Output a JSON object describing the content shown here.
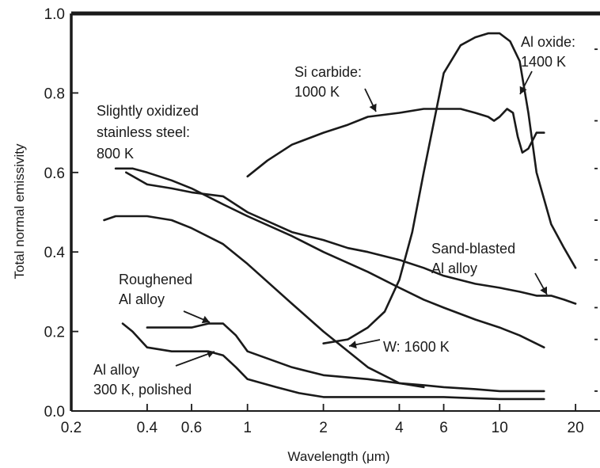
{
  "chart_data": {
    "type": "line",
    "title": "",
    "xlabel": "Wavelength (μm)",
    "ylabel": "Total normal emissivity",
    "xscale": "log",
    "xlim": [
      0.2,
      25
    ],
    "ylim": [
      0.0,
      1.0
    ],
    "grid": false,
    "legend": "none",
    "xticks": [
      {
        "value": 0.2,
        "label": "0.2"
      },
      {
        "value": 0.4,
        "label": "0.4"
      },
      {
        "value": 0.6,
        "label": "0.6"
      },
      {
        "value": 1,
        "label": "1"
      },
      {
        "value": 2,
        "label": "2"
      },
      {
        "value": 4,
        "label": "4"
      },
      {
        "value": 6,
        "label": "6"
      },
      {
        "value": 10,
        "label": "10"
      },
      {
        "value": 20,
        "label": "20"
      }
    ],
    "yticks": [
      {
        "value": 0.0,
        "label": "0.0"
      },
      {
        "value": 0.2,
        "label": "0.2"
      },
      {
        "value": 0.4,
        "label": "0.4"
      },
      {
        "value": 0.6,
        "label": "0.6"
      },
      {
        "value": 0.8,
        "label": "0.8"
      },
      {
        "value": 1.0,
        "label": "1.0"
      }
    ],
    "series": [
      {
        "key": "si-carbide",
        "x": [
          1.0,
          1.2,
          1.5,
          2.0,
          2.5,
          3.0,
          4.0,
          5.0,
          6.0,
          7.0,
          8.0,
          9.0,
          9.5,
          10.0,
          10.7,
          11.3,
          11.8,
          12.3,
          13.0,
          14.0,
          15.0
        ],
        "y": [
          0.59,
          0.63,
          0.67,
          0.7,
          0.72,
          0.74,
          0.75,
          0.76,
          0.76,
          0.76,
          0.75,
          0.74,
          0.73,
          0.74,
          0.76,
          0.75,
          0.69,
          0.65,
          0.66,
          0.7,
          0.7
        ]
      },
      {
        "key": "al-oxide",
        "x": [
          2.0,
          2.5,
          3.0,
          3.5,
          4.0,
          4.5,
          5.0,
          6.0,
          7.0,
          8.0,
          9.0,
          10.0,
          11.0,
          12.0,
          13.0,
          14.0,
          16.0,
          18.0,
          20.0
        ],
        "y": [
          0.17,
          0.18,
          0.21,
          0.25,
          0.33,
          0.45,
          0.6,
          0.85,
          0.92,
          0.94,
          0.95,
          0.95,
          0.93,
          0.88,
          0.75,
          0.6,
          0.47,
          0.41,
          0.36
        ]
      },
      {
        "key": "stainless-steel",
        "x": [
          0.3,
          0.35,
          0.4,
          0.5,
          0.6,
          0.8,
          1.0,
          1.5,
          2.0,
          3.0,
          4.0,
          5.0,
          6.0,
          8.0,
          10.0,
          12.0,
          15.0
        ],
        "y": [
          0.61,
          0.61,
          0.6,
          0.58,
          0.56,
          0.52,
          0.49,
          0.44,
          0.4,
          0.35,
          0.31,
          0.28,
          0.26,
          0.23,
          0.21,
          0.19,
          0.16
        ]
      },
      {
        "key": "sand-blasted-al",
        "x": [
          0.33,
          0.4,
          0.5,
          0.6,
          0.8,
          1.0,
          1.5,
          2.0,
          2.5,
          3.0,
          4.0,
          5.0,
          6.0,
          8.0,
          10.0,
          12.0,
          14.0,
          16.0,
          18.0,
          20.0
        ],
        "y": [
          0.6,
          0.57,
          0.56,
          0.55,
          0.54,
          0.5,
          0.45,
          0.43,
          0.41,
          0.4,
          0.38,
          0.36,
          0.34,
          0.32,
          0.31,
          0.3,
          0.29,
          0.29,
          0.28,
          0.27
        ]
      },
      {
        "key": "w-1600k",
        "x": [
          0.27,
          0.3,
          0.35,
          0.4,
          0.5,
          0.6,
          0.8,
          1.0,
          1.5,
          2.0,
          3.0,
          4.0,
          5.0
        ],
        "y": [
          0.48,
          0.49,
          0.49,
          0.49,
          0.48,
          0.46,
          0.42,
          0.37,
          0.27,
          0.2,
          0.11,
          0.07,
          0.06
        ]
      },
      {
        "key": "roughened-al",
        "x": [
          0.4,
          0.5,
          0.6,
          0.7,
          0.8,
          0.9,
          1.0,
          1.5,
          2.0,
          3.0,
          4.0,
          5.0,
          6.0,
          8.0,
          10.0,
          15.0
        ],
        "y": [
          0.21,
          0.21,
          0.21,
          0.22,
          0.22,
          0.19,
          0.15,
          0.11,
          0.09,
          0.08,
          0.07,
          0.065,
          0.06,
          0.055,
          0.05,
          0.05
        ]
      },
      {
        "key": "al-alloy-polished",
        "x": [
          0.32,
          0.35,
          0.4,
          0.5,
          0.6,
          0.7,
          0.8,
          0.9,
          1.0,
          1.3,
          1.6,
          2.0,
          3.0,
          4.0,
          6.0,
          8.0,
          10.0,
          15.0
        ],
        "y": [
          0.22,
          0.2,
          0.16,
          0.15,
          0.15,
          0.15,
          0.14,
          0.11,
          0.08,
          0.06,
          0.045,
          0.035,
          0.035,
          0.035,
          0.035,
          0.032,
          0.03,
          0.03
        ]
      }
    ],
    "annotations": [
      {
        "key": "si-carbide",
        "lines": [
          "Si carbide:",
          "1000 K"
        ]
      },
      {
        "key": "al-oxide",
        "lines": [
          "Al oxide:",
          "1400 K"
        ]
      },
      {
        "key": "stainless-steel",
        "lines": [
          "Slightly oxidized",
          "stainless steel:",
          "800 K"
        ]
      },
      {
        "key": "sand-blasted-al",
        "lines": [
          "Sand-blasted",
          "Al alloy"
        ]
      },
      {
        "key": "roughened-al",
        "lines": [
          "Roughened",
          "Al alloy"
        ]
      },
      {
        "key": "w-1600k",
        "lines": [
          "W: 1600 K"
        ]
      },
      {
        "key": "al-alloy-polished",
        "lines": [
          "Al alloy",
          "300 K, polished"
        ]
      }
    ]
  }
}
